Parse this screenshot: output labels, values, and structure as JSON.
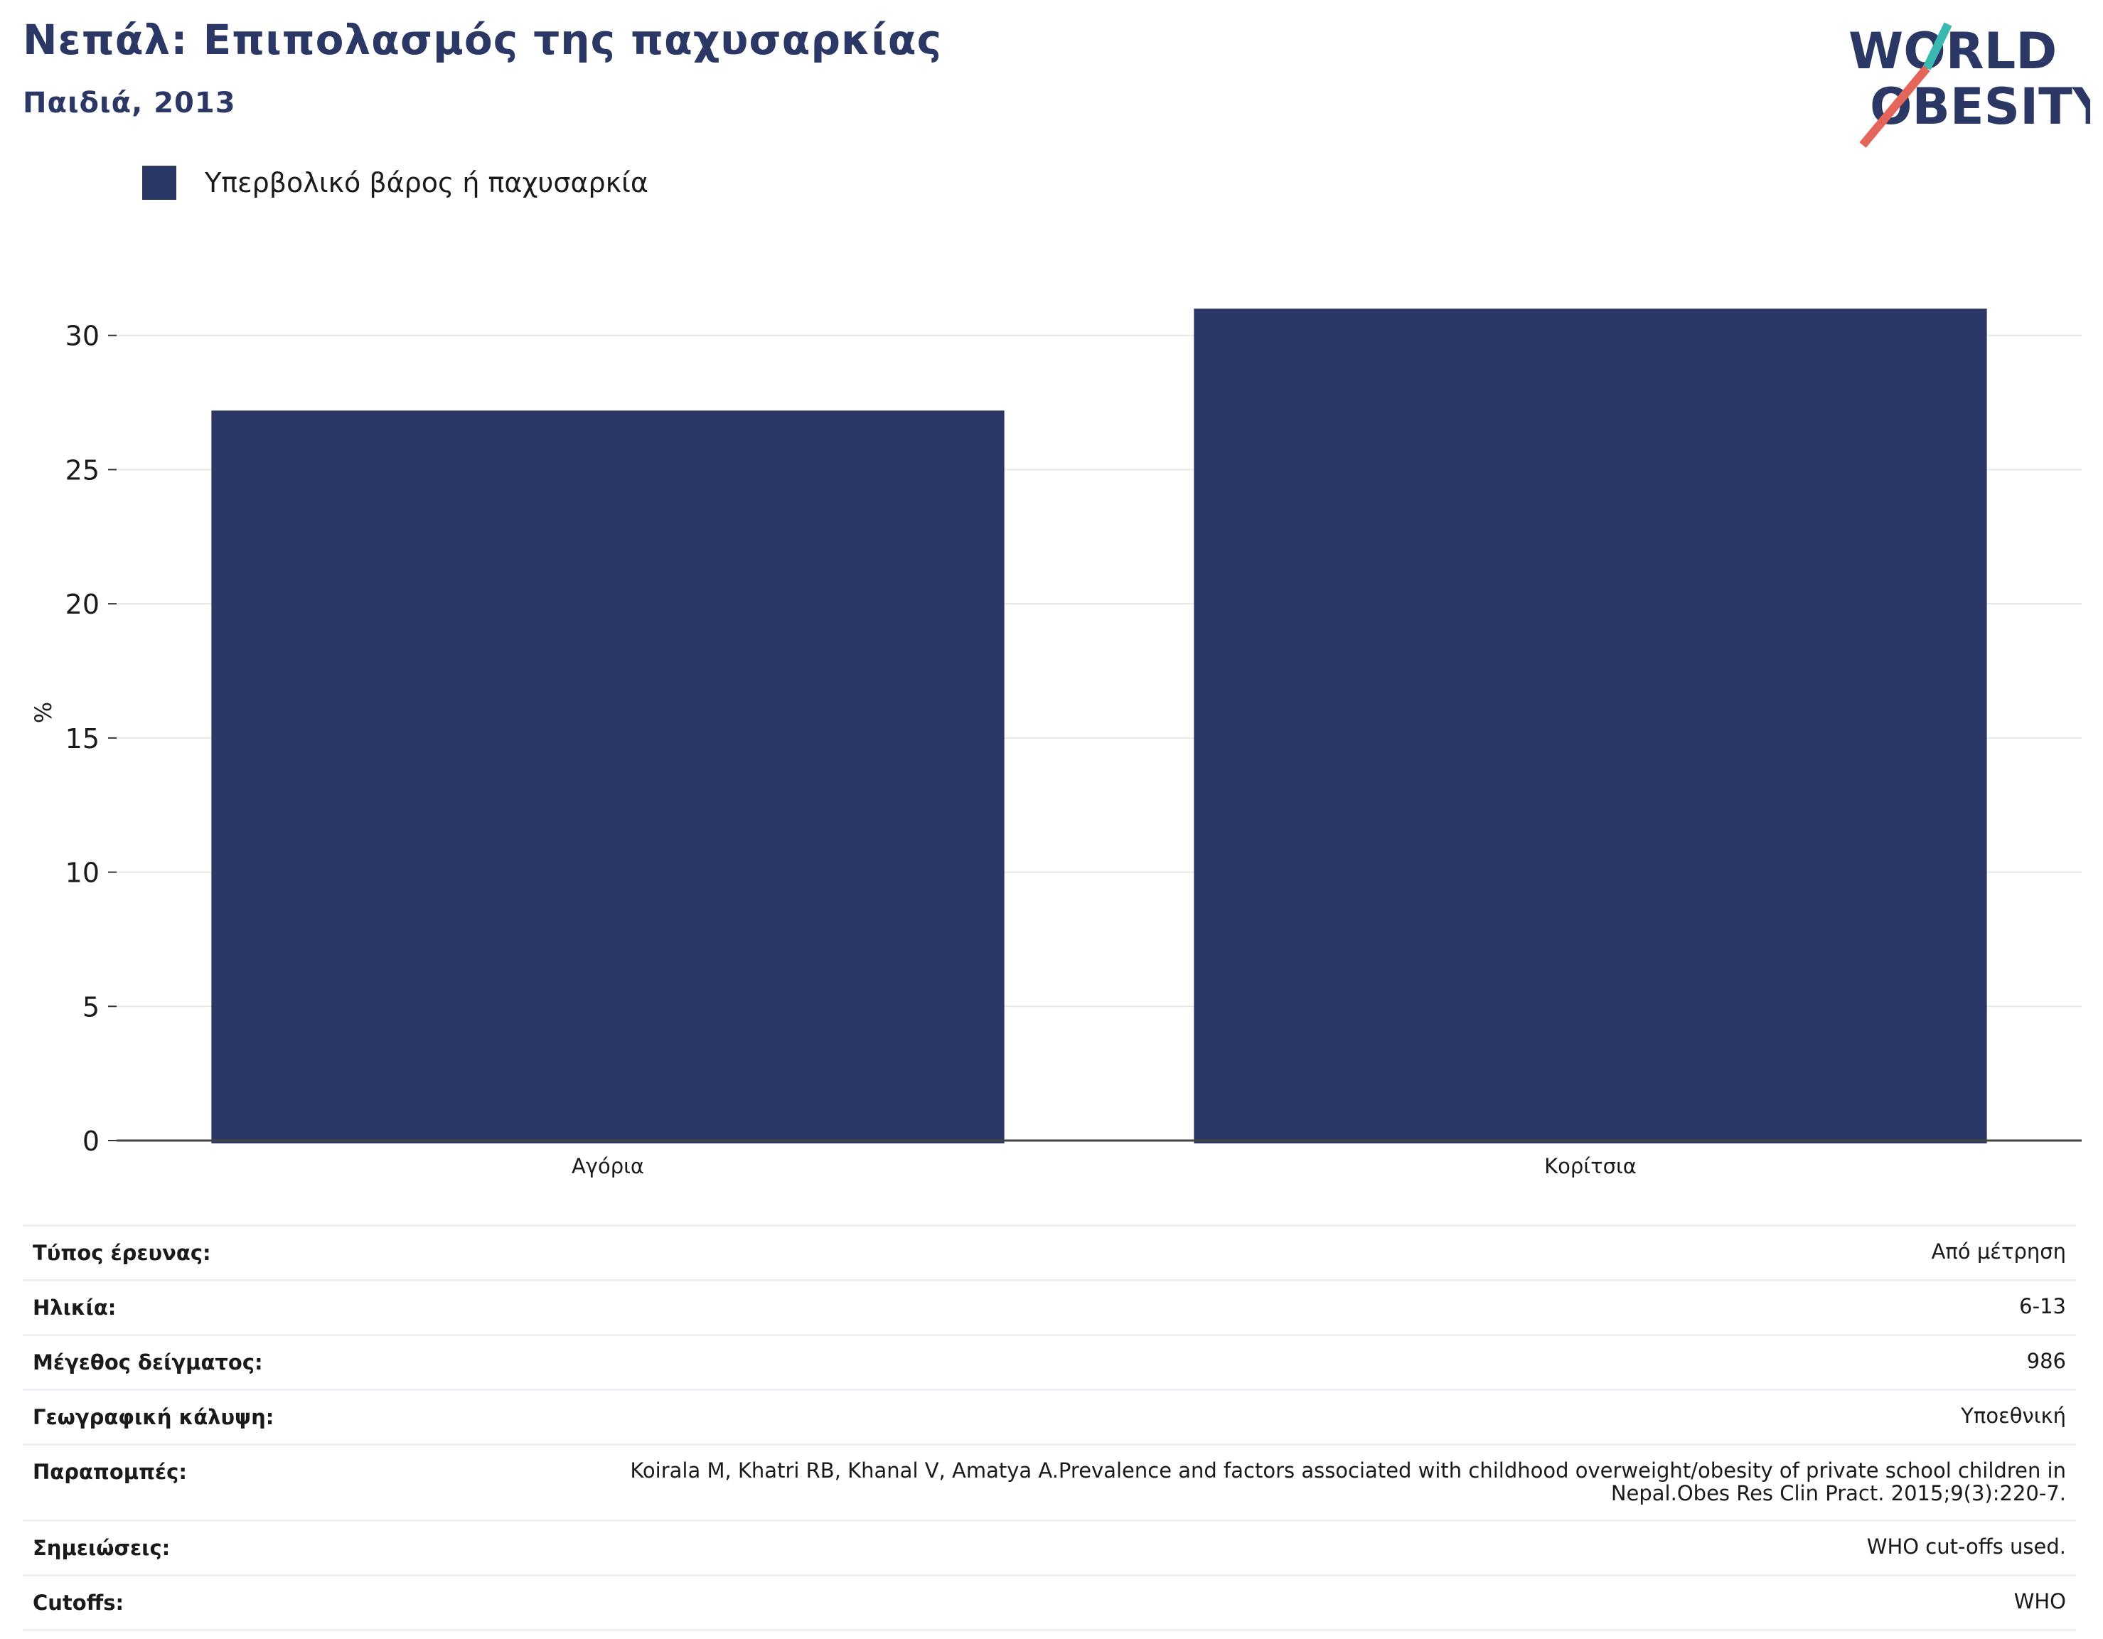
{
  "header": {
    "title": "Νεπάλ: Επιπολασμός της παχυσαρκίας",
    "subtitle": "Παιδιά, 2013"
  },
  "logo": {
    "line1": "WORLD",
    "line2": "OBESITY",
    "text_color": "#2b3764",
    "slash_colors": [
      "#3bb8b0",
      "#e4665a"
    ]
  },
  "chart_data": {
    "type": "bar",
    "categories": [
      "Αγόρια",
      "Κορίτσια"
    ],
    "series": [
      {
        "name": "Υπερβολικό βάρος ή παχυσαρκία",
        "values": [
          27.2,
          31.0
        ],
        "color": "#2b3764"
      }
    ],
    "ylabel": "%",
    "xlabel": "",
    "ylim": [
      0,
      31.9
    ],
    "yticks": [
      0,
      5,
      10,
      15,
      20,
      25,
      30
    ],
    "grid": true,
    "legend_position": "top-left"
  },
  "info": [
    {
      "key": "Τύπος έρευνας:",
      "value": "Από μέτρηση"
    },
    {
      "key": "Ηλικία:",
      "value": "6-13"
    },
    {
      "key": "Μέγεθος δείγματος:",
      "value": "986"
    },
    {
      "key": "Γεωγραφική κάλυψη:",
      "value": "Υποεθνική"
    },
    {
      "key": "Παραπομπές:",
      "value_lines": [
        "Koirala M, Khatri RB, Khanal V, Amatya A.Prevalence and factors associated with childhood overweight/obesity of private school children in",
        "Nepal.Obes Res Clin Pract. 2015;9(3):220-7."
      ]
    },
    {
      "key": "Σημειώσεις:",
      "value": "WHO cut-offs used."
    },
    {
      "key": "Cutoffs:",
      "value": "WHO"
    }
  ]
}
